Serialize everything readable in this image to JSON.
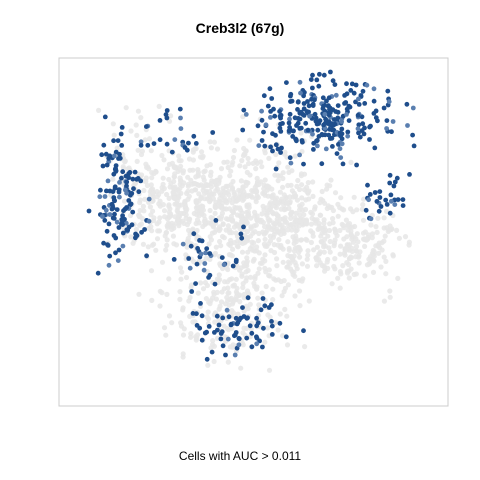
{
  "chart_data": {
    "type": "scatter",
    "title": "Creb3l2 (67g)",
    "xlabel": "Cells with AUC > 0.011",
    "ylabel": "",
    "grid": false,
    "legend": "none",
    "colors": {
      "high": "#1f4e8c",
      "mid": "#5a7fb0",
      "background": "#e6e6e6",
      "frame": "#cccccc"
    },
    "series": [
      {
        "role": "background",
        "clusters": [
          {
            "cx": 0.3,
            "cy": 0.42,
            "sx": 0.07,
            "sy": 0.08,
            "n": 260
          },
          {
            "cx": 0.47,
            "cy": 0.38,
            "sx": 0.09,
            "sy": 0.09,
            "n": 330
          },
          {
            "cx": 0.62,
            "cy": 0.47,
            "sx": 0.08,
            "sy": 0.07,
            "n": 220
          },
          {
            "cx": 0.8,
            "cy": 0.54,
            "sx": 0.06,
            "sy": 0.06,
            "n": 150
          },
          {
            "cx": 0.42,
            "cy": 0.75,
            "sx": 0.09,
            "sy": 0.07,
            "n": 200
          },
          {
            "cx": 0.18,
            "cy": 0.35,
            "sx": 0.05,
            "sy": 0.1,
            "n": 120
          },
          {
            "cx": 0.55,
            "cy": 0.58,
            "sx": 0.1,
            "sy": 0.07,
            "n": 160
          }
        ]
      },
      {
        "role": "positive",
        "clusters": [
          {
            "cx": 0.72,
            "cy": 0.14,
            "sx": 0.08,
            "sy": 0.06,
            "n": 240
          },
          {
            "cx": 0.55,
            "cy": 0.16,
            "sx": 0.05,
            "sy": 0.05,
            "n": 40
          },
          {
            "cx": 0.12,
            "cy": 0.4,
            "sx": 0.04,
            "sy": 0.1,
            "n": 130
          },
          {
            "cx": 0.48,
            "cy": 0.8,
            "sx": 0.08,
            "sy": 0.05,
            "n": 70
          },
          {
            "cx": 0.88,
            "cy": 0.4,
            "sx": 0.04,
            "sy": 0.04,
            "n": 30
          },
          {
            "cx": 0.36,
            "cy": 0.58,
            "sx": 0.06,
            "sy": 0.06,
            "n": 35
          },
          {
            "cx": 0.27,
            "cy": 0.2,
            "sx": 0.05,
            "sy": 0.04,
            "n": 25
          }
        ]
      }
    ]
  }
}
